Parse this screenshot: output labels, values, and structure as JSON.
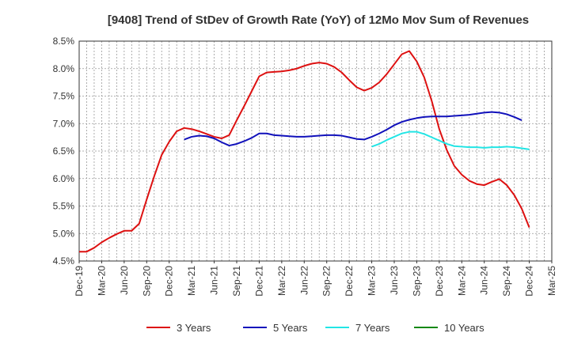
{
  "chart_data": {
    "type": "line",
    "title": "[9408]  Trend of StDev of Growth Rate (YoY) of 12Mo Mov Sum of Revenues",
    "xlabel": "",
    "ylabel": "",
    "ylim": [
      4.5,
      8.5
    ],
    "yticks": [
      "4.5%",
      "5.0%",
      "5.5%",
      "6.0%",
      "6.5%",
      "7.0%",
      "7.5%",
      "8.0%",
      "8.5%"
    ],
    "yticks_values": [
      4.5,
      5.0,
      5.5,
      6.0,
      6.5,
      7.0,
      7.5,
      8.0,
      8.5
    ],
    "x_categories": [
      "Dec-19",
      "Mar-20",
      "Jun-20",
      "Sep-20",
      "Dec-20",
      "Mar-21",
      "Jun-21",
      "Sep-21",
      "Dec-21",
      "Mar-22",
      "Jun-22",
      "Sep-22",
      "Dec-22",
      "Mar-23",
      "Jun-23",
      "Sep-23",
      "Dec-23",
      "Mar-24",
      "Jun-24",
      "Sep-24",
      "Dec-24",
      "Mar-25"
    ],
    "grid": true,
    "legend_position": "bottom",
    "series": [
      {
        "name": "3 Years",
        "color": "#dd1111",
        "start_index": 0,
        "values": [
          4.67,
          4.67,
          4.74,
          4.84,
          4.92,
          4.99,
          5.05,
          5.05,
          5.18,
          5.62,
          6.04,
          6.43,
          6.67,
          6.86,
          6.92,
          6.9,
          6.86,
          6.81,
          6.76,
          6.73,
          6.79,
          7.06,
          7.32,
          7.59,
          7.86,
          7.93,
          7.94,
          7.95,
          7.97,
          8.0,
          8.05,
          8.09,
          8.11,
          8.09,
          8.03,
          7.93,
          7.79,
          7.66,
          7.6,
          7.65,
          7.75,
          7.9,
          8.08,
          8.26,
          8.32,
          8.13,
          7.84,
          7.41,
          6.9,
          6.52,
          6.23,
          6.07,
          5.96,
          5.9,
          5.88,
          5.94,
          5.99,
          5.88,
          5.7,
          5.45,
          5.11
        ]
      },
      {
        "name": "5 Years",
        "color": "#1111bb",
        "start_index": 14,
        "values": [
          6.71,
          6.76,
          6.78,
          6.77,
          6.73,
          6.66,
          6.6,
          6.63,
          6.68,
          6.74,
          6.82,
          6.82,
          6.79,
          6.78,
          6.77,
          6.76,
          6.76,
          6.77,
          6.78,
          6.79,
          6.79,
          6.78,
          6.75,
          6.72,
          6.71,
          6.76,
          6.82,
          6.89,
          6.97,
          7.03,
          7.07,
          7.1,
          7.12,
          7.13,
          7.13,
          7.13,
          7.14,
          7.15,
          7.16,
          7.18,
          7.2,
          7.21,
          7.2,
          7.17,
          7.12,
          7.06
        ]
      },
      {
        "name": "7 Years",
        "color": "#22e5e5",
        "start_index": 39,
        "values": [
          6.58,
          6.63,
          6.7,
          6.76,
          6.82,
          6.85,
          6.85,
          6.81,
          6.75,
          6.69,
          6.63,
          6.59,
          6.58,
          6.57,
          6.57,
          6.56,
          6.57,
          6.57,
          6.58,
          6.57,
          6.55,
          6.53
        ]
      },
      {
        "name": "10 Years",
        "color": "#118811",
        "start_index": 0,
        "values": []
      }
    ]
  }
}
